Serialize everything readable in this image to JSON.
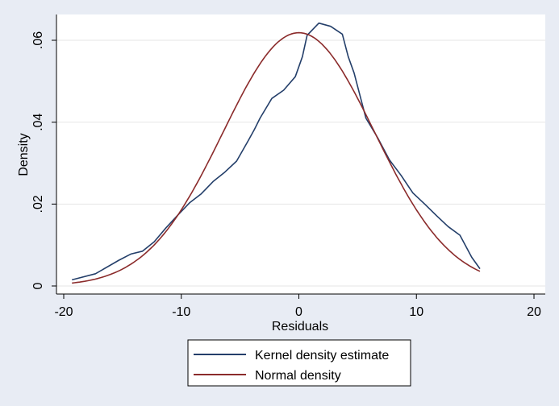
{
  "chart_data": {
    "type": "line",
    "title": "",
    "xlabel": "Residuals",
    "ylabel": "Density",
    "xlim": [
      -20,
      20
    ],
    "ylim": [
      0,
      0.066
    ],
    "x_ticks": [
      -20,
      -10,
      0,
      10,
      20
    ],
    "x_tick_labels": [
      "-20",
      "-10",
      "0",
      "10",
      "20"
    ],
    "y_ticks": [
      0,
      0.02,
      0.04,
      0.06
    ],
    "y_tick_labels": [
      "0",
      ".02",
      ".04",
      ".06"
    ],
    "grid": true,
    "legend_position": "bottom",
    "colors": {
      "page_background": "#e8ecf4",
      "plot_background": "#ffffff",
      "grid": "#e6e6e6",
      "kernel": "#243f6a",
      "normal": "#8b2b2b"
    },
    "series": [
      {
        "name": "Kernel density estimate",
        "x": [
          -19.3,
          -17.3,
          -15.3,
          -14.3,
          -13.3,
          -12.3,
          -11.3,
          -10.3,
          -9.3,
          -8.3,
          -7.3,
          -6.3,
          -5.3,
          -4.3,
          -3.8,
          -3.3,
          -2.3,
          -1.3,
          -0.3,
          0.3,
          0.7,
          1.7,
          2.7,
          3.7,
          4.2,
          4.7,
          5.7,
          6.7,
          7.7,
          8.7,
          9.7,
          10.7,
          11.7,
          12.7,
          13.7,
          14.7,
          15.4
        ],
        "y": [
          0.0015,
          0.003,
          0.0063,
          0.0078,
          0.0085,
          0.0108,
          0.0142,
          0.0173,
          0.0203,
          0.0225,
          0.0255,
          0.0278,
          0.0305,
          0.0355,
          0.0381,
          0.041,
          0.0458,
          0.0478,
          0.0511,
          0.056,
          0.0612,
          0.0642,
          0.0634,
          0.0615,
          0.056,
          0.052,
          0.041,
          0.0362,
          0.0308,
          0.027,
          0.0227,
          0.02,
          0.0172,
          0.0145,
          0.0124,
          0.007,
          0.0042
        ]
      },
      {
        "name": "Normal density",
        "mean": 0,
        "sd": 6.45,
        "x_start": -19.3,
        "x_end": 15.4
      }
    ]
  }
}
